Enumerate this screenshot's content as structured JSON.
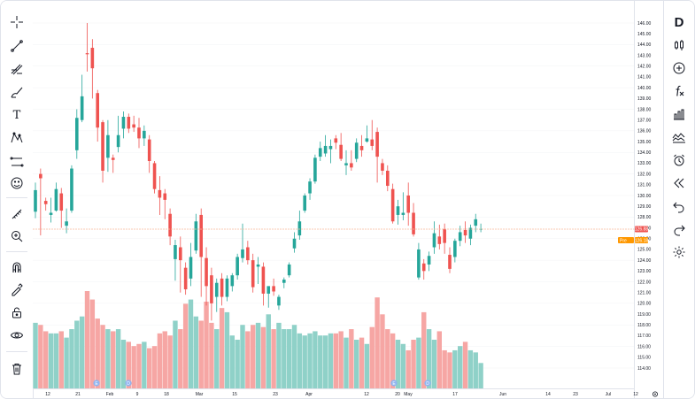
{
  "left_toolbar": {
    "tools": [
      {
        "name": "crosshair-icon"
      },
      {
        "name": "trend-line-icon"
      },
      {
        "name": "fib-retracement-icon"
      },
      {
        "name": "brush-icon"
      },
      {
        "name": "text-tool-icon",
        "label": "T"
      },
      {
        "name": "pattern-icon"
      },
      {
        "name": "ruler-range-icon"
      },
      {
        "name": "emoji-icon"
      },
      {
        "name": "measure-icon"
      },
      {
        "name": "zoom-in-icon"
      },
      {
        "name": "magnet-icon"
      },
      {
        "name": "stay-drawing-icon"
      },
      {
        "name": "lock-icon"
      },
      {
        "name": "eye-icon"
      },
      {
        "name": "trash-icon"
      }
    ]
  },
  "right_toolbar": {
    "logo": "D",
    "tools": [
      {
        "name": "candles-icon"
      },
      {
        "name": "add-symbol-icon"
      },
      {
        "name": "indicators-icon",
        "label": "f"
      },
      {
        "name": "bar-chart-icon"
      },
      {
        "name": "compare-icon"
      },
      {
        "name": "alert-icon"
      },
      {
        "name": "replay-icon"
      },
      {
        "name": "undo-icon"
      },
      {
        "name": "redo-icon"
      },
      {
        "name": "settings-icon"
      }
    ]
  },
  "colors": {
    "up": "#26a69a",
    "down": "#ef5350",
    "up_volume": "#8fd1c8",
    "down_volume": "#f6a6a4",
    "price_line": "#f7b89a",
    "last_price_bg": "#ef5350",
    "prev_close_bg": "#ff9800",
    "event_icon": "#8fb4f0"
  },
  "price_axis": {
    "labels": [
      "146.00",
      "145.00",
      "144.00",
      "143.00",
      "142.00",
      "141.00",
      "140.00",
      "139.00",
      "138.00",
      "137.00",
      "136.00",
      "135.00",
      "134.00",
      "133.00",
      "132.00",
      "131.00",
      "130.00",
      "129.00",
      "128.00",
      "127.00",
      "126.00",
      "125.00",
      "124.00",
      "123.00",
      "122.00",
      "121.00",
      "120.00",
      "119.00",
      "118.00",
      "117.00",
      "116.00",
      "115.00",
      "114.00"
    ],
    "last_price": "126.88",
    "prev_close_label": "Pre",
    "prev_close": "126.18"
  },
  "time_axis": {
    "labels": [
      "12",
      "21",
      "Feb",
      "9",
      "18",
      "Mar",
      "15",
      "23",
      "Apr",
      "12",
      "20",
      "May",
      "17",
      "Jun",
      "14",
      "23",
      "Jul",
      "12"
    ]
  },
  "event_markers": [
    "E",
    "D",
    "E",
    "D"
  ],
  "chart_data": {
    "type": "candlestick",
    "ylim": [
      114,
      146.5
    ],
    "last_price": 126.88,
    "prev_close": 126.18,
    "candles": [
      [
        128.5,
        131.2,
        127.9,
        130.5
      ],
      [
        132.0,
        132.5,
        126.3,
        131.6
      ],
      [
        129.5,
        129.8,
        128.6,
        129.2
      ],
      [
        128.2,
        129.8,
        127.5,
        128.4
      ],
      [
        128.6,
        131.2,
        128.5,
        130.6
      ],
      [
        130.2,
        130.7,
        127.0,
        128.6
      ],
      [
        127.2,
        128.8,
        126.5,
        127.6
      ],
      [
        128.6,
        132.8,
        128.4,
        132.5
      ],
      [
        134.2,
        138.0,
        133.4,
        137.2
      ],
      [
        137.0,
        141.2,
        136.8,
        139.2
      ],
      [
        143.2,
        146.0,
        141.5,
        143.1
      ],
      [
        143.7,
        144.5,
        139.0,
        141.8
      ],
      [
        139.5,
        139.8,
        135.0,
        136.3
      ],
      [
        136.8,
        137.0,
        131.2,
        132.3
      ],
      [
        133.5,
        137.0,
        132.2,
        135.6
      ],
      [
        133.5,
        133.8,
        132.1,
        133.3
      ],
      [
        134.5,
        137.4,
        134.0,
        135.6
      ],
      [
        136.2,
        137.8,
        135.3,
        137.3
      ],
      [
        137.3,
        137.6,
        135.8,
        136.2
      ],
      [
        136.6,
        137.4,
        135.9,
        136.3
      ],
      [
        136.3,
        137.2,
        134.4,
        135.3
      ],
      [
        135.3,
        136.5,
        134.6,
        136.0
      ],
      [
        135.2,
        135.6,
        132.1,
        133.2
      ],
      [
        133.0,
        133.2,
        130.2,
        130.6
      ],
      [
        130.5,
        131.8,
        128.2,
        129.8
      ],
      [
        130.2,
        130.6,
        127.8,
        129.6
      ],
      [
        128.3,
        128.8,
        125.4,
        126.2
      ],
      [
        124.1,
        125.9,
        122.1,
        125.4
      ],
      [
        125.2,
        126.2,
        121.0,
        124.0
      ],
      [
        123.3,
        123.8,
        120.8,
        121.3
      ],
      [
        122.3,
        125.6,
        121.6,
        124.3
      ],
      [
        124.9,
        128.3,
        124.6,
        127.6
      ],
      [
        128.2,
        128.8,
        120.6,
        124.3
      ],
      [
        124.2,
        125.2,
        119.8,
        121.6
      ],
      [
        122.6,
        123.3,
        118.4,
        120.0
      ],
      [
        120.6,
        122.3,
        119.2,
        121.9
      ],
      [
        122.3,
        122.8,
        119.8,
        120.6
      ],
      [
        120.6,
        122.6,
        120.2,
        122.3
      ],
      [
        121.6,
        122.8,
        121.1,
        122.6
      ],
      [
        122.6,
        124.6,
        122.2,
        124.3
      ],
      [
        124.2,
        127.4,
        123.8,
        125.0
      ],
      [
        125.2,
        125.8,
        123.6,
        124.0
      ],
      [
        124.0,
        124.6,
        121.0,
        121.5
      ],
      [
        123.4,
        124.3,
        121.8,
        123.6
      ],
      [
        123.4,
        123.8,
        119.8,
        120.9
      ],
      [
        120.9,
        121.4,
        119.6,
        121.6
      ],
      [
        121.6,
        122.3,
        120.7,
        121.1
      ],
      [
        119.8,
        120.8,
        119.4,
        120.6
      ],
      [
        121.9,
        122.4,
        121.4,
        122.2
      ],
      [
        122.6,
        123.8,
        122.4,
        123.6
      ],
      [
        125.1,
        126.6,
        124.7,
        126.0
      ],
      [
        126.3,
        128.6,
        125.9,
        127.6
      ],
      [
        128.6,
        130.2,
        128.4,
        130.0
      ],
      [
        130.2,
        131.6,
        129.6,
        131.3
      ],
      [
        131.3,
        133.8,
        131.1,
        133.5
      ],
      [
        133.6,
        135.0,
        133.2,
        134.4
      ],
      [
        133.9,
        135.6,
        133.6,
        134.6
      ],
      [
        134.3,
        135.2,
        133.0,
        134.6
      ],
      [
        135.3,
        135.6,
        134.3,
        134.9
      ],
      [
        134.7,
        135.8,
        133.2,
        133.4
      ],
      [
        132.8,
        134.2,
        131.9,
        133.0
      ],
      [
        133.0,
        134.2,
        132.3,
        132.6
      ],
      [
        133.4,
        135.3,
        133.1,
        134.9
      ],
      [
        134.6,
        135.6,
        133.6,
        134.2
      ],
      [
        135.0,
        136.5,
        134.9,
        135.3
      ],
      [
        135.2,
        137.0,
        134.2,
        134.6
      ],
      [
        135.9,
        136.3,
        131.2,
        133.6
      ],
      [
        133.0,
        133.4,
        131.9,
        132.3
      ],
      [
        132.3,
        132.8,
        130.4,
        130.9
      ],
      [
        130.6,
        131.1,
        127.4,
        127.6
      ],
      [
        128.2,
        129.6,
        127.3,
        129.0
      ],
      [
        128.2,
        130.3,
        127.7,
        128.4
      ],
      [
        130.0,
        131.2,
        127.2,
        128.4
      ],
      [
        128.4,
        129.3,
        126.2,
        126.4
      ],
      [
        122.4,
        125.6,
        122.2,
        125.0
      ],
      [
        123.7,
        124.1,
        122.2,
        123.0
      ],
      [
        123.6,
        124.8,
        123.0,
        124.4
      ],
      [
        125.2,
        127.6,
        124.6,
        126.5
      ],
      [
        126.2,
        127.3,
        125.0,
        125.5
      ],
      [
        126.9,
        127.4,
        124.6,
        125.6
      ],
      [
        124.5,
        125.2,
        122.8,
        123.2
      ],
      [
        124.3,
        126.0,
        123.8,
        125.8
      ],
      [
        125.8,
        127.2,
        125.3,
        126.6
      ],
      [
        126.8,
        127.6,
        125.6,
        126.3
      ],
      [
        126.0,
        127.3,
        125.4,
        127.0
      ],
      [
        127.2,
        128.3,
        126.6,
        127.8
      ],
      [
        126.9,
        127.4,
        126.6,
        126.9
      ]
    ],
    "volume_range": [
      0,
      1
    ],
    "volumes": [
      0.31,
      0.3,
      0.27,
      0.26,
      0.26,
      0.27,
      0.24,
      0.28,
      0.32,
      0.34,
      0.46,
      0.42,
      0.33,
      0.3,
      0.28,
      0.27,
      0.28,
      0.23,
      0.22,
      0.2,
      0.21,
      0.22,
      0.19,
      0.2,
      0.26,
      0.27,
      0.25,
      0.32,
      0.28,
      0.4,
      0.42,
      0.34,
      0.32,
      0.41,
      0.31,
      0.28,
      0.38,
      0.36,
      0.25,
      0.23,
      0.3,
      0.27,
      0.3,
      0.31,
      0.29,
      0.35,
      0.28,
      0.31,
      0.28,
      0.28,
      0.3,
      0.26,
      0.25,
      0.26,
      0.27,
      0.25,
      0.25,
      0.26,
      0.26,
      0.27,
      0.24,
      0.28,
      0.23,
      0.24,
      0.21,
      0.29,
      0.43,
      0.35,
      0.28,
      0.26,
      0.23,
      0.21,
      0.18,
      0.23,
      0.24,
      0.36,
      0.28,
      0.23,
      0.27,
      0.18,
      0.17,
      0.18,
      0.2,
      0.22,
      0.18,
      0.17,
      0.12
    ]
  }
}
